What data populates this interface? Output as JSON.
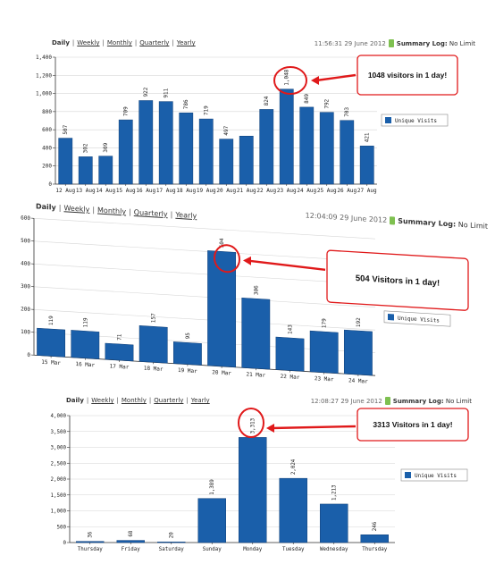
{
  "colors": {
    "bar": "#1a5faa",
    "bar_edge": "#0f3f78",
    "annotation": "#e0191a",
    "log_icon": "#7ec050"
  },
  "icons": {
    "summary_log": "log-icon",
    "legend": "legend-swatch-icon"
  },
  "charts": [
    {
      "nav": {
        "daily": "Daily",
        "weekly": "Weekly",
        "monthly": "Monthly",
        "quarterly": "Quarterly",
        "yearly": "Yearly",
        "separator": "|"
      },
      "timestamp": "11:56:31  29 June 2012",
      "summary_log": {
        "label": "Summary Log:",
        "value": "No Limit"
      },
      "legend": "Unique Visits",
      "callout": "1048 visitors in 1 day!"
    },
    {
      "nav": {
        "daily": "Daily",
        "weekly": "Weekly",
        "monthly": "Monthly",
        "quarterly": "Quarterly",
        "yearly": "Yearly",
        "separator": "|"
      },
      "timestamp": "12:04:09  29 June 2012",
      "summary_log": {
        "label": "Summary Log:",
        "value": "No Limit"
      },
      "legend": "Unique Visits",
      "callout": "504 Visitors in 1 day!"
    },
    {
      "nav": {
        "daily": "Daily",
        "weekly": "Weekly",
        "monthly": "Monthly",
        "quarterly": "Quarterly",
        "yearly": "Yearly",
        "separator": "|"
      },
      "timestamp": "12:08:27  29 June 2012",
      "summary_log": {
        "label": "Summary Log:",
        "value": "No Limit"
      },
      "legend": "Unique Visits",
      "callout": "3313 Visitors in 1 day!"
    }
  ],
  "chart_data": [
    {
      "type": "bar",
      "categories": [
        "12 Aug",
        "13 Aug",
        "14 Aug",
        "15 Aug",
        "16 Aug",
        "17 Aug",
        "18 Aug",
        "19 Aug",
        "20 Aug",
        "21 Aug",
        "22 Aug",
        "23 Aug",
        "24 Aug",
        "25 Aug",
        "26 Aug",
        "27 Aug"
      ],
      "series": [
        {
          "name": "Unique Visits",
          "values": [
            507,
            302,
            309,
            709,
            922,
            911,
            786,
            719,
            497,
            530,
            824,
            1048,
            849,
            792,
            703,
            421
          ]
        }
      ],
      "value_labels": [
        "507",
        "302",
        "309",
        "709",
        "922",
        "911",
        "786",
        "719",
        "497",
        "",
        "824",
        "1,048",
        "849",
        "792",
        "703",
        "421"
      ],
      "yticks": [
        "0",
        "200",
        "400",
        "600",
        "800",
        "1,000",
        "1,200",
        "1,400"
      ],
      "ylim": [
        0,
        1400
      ],
      "xlabel": "",
      "ylabel": "",
      "grid": true,
      "legend_position": "right"
    },
    {
      "type": "bar",
      "categories": [
        "15 Mar",
        "16 Mar",
        "17 Mar",
        "18 Mar",
        "19 Mar",
        "20 Mar",
        "21 Mar",
        "22 Mar",
        "23 Mar",
        "24 Mar"
      ],
      "series": [
        {
          "name": "Unique Visits",
          "values": [
            119,
            119,
            71,
            157,
            95,
            504,
            306,
            143,
            179,
            192
          ]
        }
      ],
      "value_labels": [
        "119",
        "119",
        "71",
        "157",
        "95",
        "504",
        "306",
        "143",
        "179",
        "192"
      ],
      "yticks": [
        "0",
        "100",
        "200",
        "300",
        "400",
        "500",
        "600"
      ],
      "ylim": [
        0,
        600
      ],
      "xlabel": "",
      "ylabel": "",
      "grid": true,
      "legend_position": "right"
    },
    {
      "type": "bar",
      "categories": [
        "Thursday",
        "Friday",
        "Saturday",
        "Sunday",
        "Monday",
        "Tuesday",
        "Wednesday",
        "Thursday"
      ],
      "series": [
        {
          "name": "Unique Visits",
          "values": [
            36,
            68,
            20,
            1389,
            3313,
            2024,
            1213,
            246
          ]
        }
      ],
      "value_labels": [
        "36",
        "68",
        "20",
        "1,389",
        "3,313",
        "2,024",
        "1,213",
        "246"
      ],
      "yticks": [
        "0",
        "500",
        "1,000",
        "1,500",
        "2,000",
        "2,500",
        "3,000",
        "3,500",
        "4,000"
      ],
      "ylim": [
        0,
        4000
      ],
      "xlabel": "",
      "ylabel": "",
      "grid": true,
      "legend_position": "right"
    }
  ]
}
